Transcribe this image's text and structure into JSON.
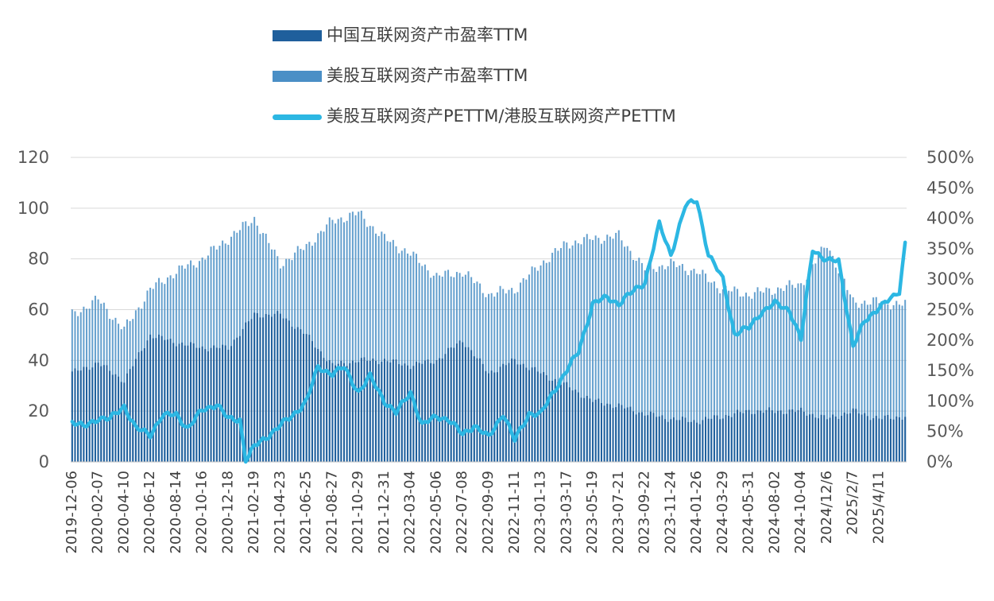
{
  "chart_data": {
    "type": "bar",
    "legend": [
      "中国互联网资产市盈率TTM",
      "美股互联网资产市盈率TTM",
      "美股互联网资产PETTM/港股互联网资产PETTM"
    ],
    "legend_position": "top",
    "grid": true,
    "colors": {
      "china_bar": "#1f5f9c",
      "us_bar": "#4a8fc6",
      "ratio_line": "#2cb7e3"
    },
    "left_axis": {
      "min": 0,
      "max": 120,
      "ticks": [
        "0",
        "20",
        "40",
        "60",
        "80",
        "100",
        "120"
      ]
    },
    "right_axis": {
      "min": 0,
      "max": 5,
      "ticks": [
        "0%",
        "50%",
        "100%",
        "150%",
        "200%",
        "250%",
        "300%",
        "350%",
        "400%",
        "450%",
        "500%"
      ]
    },
    "x_tick_labels": [
      "2019-12-06",
      "2020-02-07",
      "2020-04-10",
      "2020-06-12",
      "2020-08-14",
      "2020-10-16",
      "2020-12-18",
      "2021-02-19",
      "2021-04-23",
      "2021-06-25",
      "2021-08-27",
      "2021-10-29",
      "2021-12-31",
      "2022-03-04",
      "2022-05-06",
      "2022-07-08",
      "2022-09-09",
      "2022-11-11",
      "2023-01-13",
      "2023-03-17",
      "2023-05-19",
      "2023-07-21",
      "2023-09-22",
      "2023-11-24",
      "2024-01-26",
      "2024-03-29",
      "2024-05-31",
      "2024-08-02",
      "2024-10-04",
      "2024/12/6",
      "2025/2/7",
      "2025/4/11"
    ],
    "tick_index_positions": [
      0,
      9,
      18,
      27,
      36,
      45,
      54,
      63,
      72,
      81,
      90,
      99,
      108,
      117,
      126,
      135,
      144,
      153,
      162,
      171,
      180,
      189,
      198,
      207,
      216,
      225,
      234,
      243,
      252,
      261,
      270,
      279
    ],
    "n_points": 289,
    "series": [
      {
        "name": "中国互联网资产市盈率TTM",
        "type": "bar",
        "axis": "left",
        "anchors": [
          [
            0,
            35
          ],
          [
            9,
            39
          ],
          [
            18,
            32
          ],
          [
            27,
            50
          ],
          [
            36,
            47
          ],
          [
            45,
            45
          ],
          [
            54,
            45
          ],
          [
            63,
            58
          ],
          [
            72,
            58
          ],
          [
            81,
            50
          ],
          [
            90,
            38
          ],
          [
            99,
            40
          ],
          [
            108,
            40
          ],
          [
            117,
            38
          ],
          [
            126,
            40
          ],
          [
            135,
            48
          ],
          [
            144,
            35
          ],
          [
            153,
            40
          ],
          [
            162,
            35
          ],
          [
            171,
            30
          ],
          [
            180,
            24
          ],
          [
            189,
            22
          ],
          [
            198,
            19
          ],
          [
            207,
            17
          ],
          [
            216,
            16
          ],
          [
            225,
            18
          ],
          [
            234,
            20
          ],
          [
            243,
            20
          ],
          [
            252,
            20
          ],
          [
            261,
            17
          ],
          [
            270,
            20
          ],
          [
            279,
            17
          ],
          [
            288,
            18
          ]
        ]
      },
      {
        "name": "美股互联网资产市盈率TTM",
        "type": "bar",
        "axis": "left",
        "anchors": [
          [
            0,
            58
          ],
          [
            9,
            64
          ],
          [
            18,
            52
          ],
          [
            27,
            68
          ],
          [
            36,
            75
          ],
          [
            45,
            80
          ],
          [
            54,
            88
          ],
          [
            63,
            96
          ],
          [
            72,
            78
          ],
          [
            81,
            85
          ],
          [
            90,
            95
          ],
          [
            99,
            98
          ],
          [
            108,
            88
          ],
          [
            117,
            82
          ],
          [
            126,
            73
          ],
          [
            135,
            75
          ],
          [
            144,
            66
          ],
          [
            153,
            68
          ],
          [
            162,
            78
          ],
          [
            171,
            86
          ],
          [
            180,
            88
          ],
          [
            189,
            89
          ],
          [
            198,
            76
          ],
          [
            207,
            78
          ],
          [
            216,
            75
          ],
          [
            225,
            68
          ],
          [
            234,
            66
          ],
          [
            243,
            68
          ],
          [
            252,
            70
          ],
          [
            261,
            86
          ],
          [
            270,
            63
          ],
          [
            279,
            63
          ],
          [
            288,
            62
          ]
        ]
      },
      {
        "name": "美股互联网资产PETTM/港股互联网资产PETTM",
        "type": "line",
        "axis": "right",
        "anchors": [
          [
            0,
            0.66
          ],
          [
            4,
            0.57
          ],
          [
            9,
            0.72
          ],
          [
            13,
            0.7
          ],
          [
            18,
            0.92
          ],
          [
            22,
            0.55
          ],
          [
            27,
            0.45
          ],
          [
            31,
            0.75
          ],
          [
            36,
            0.78
          ],
          [
            40,
            0.55
          ],
          [
            45,
            0.85
          ],
          [
            50,
            0.95
          ],
          [
            54,
            0.7
          ],
          [
            58,
            0.7
          ],
          [
            60,
            0.02
          ],
          [
            63,
            0.25
          ],
          [
            67,
            0.4
          ],
          [
            72,
            0.6
          ],
          [
            76,
            0.75
          ],
          [
            81,
            1.0
          ],
          [
            85,
            1.55
          ],
          [
            90,
            1.45
          ],
          [
            94,
            1.55
          ],
          [
            99,
            1.15
          ],
          [
            103,
            1.4
          ],
          [
            108,
            1.0
          ],
          [
            112,
            0.8
          ],
          [
            117,
            1.15
          ],
          [
            121,
            0.6
          ],
          [
            126,
            0.75
          ],
          [
            130,
            0.7
          ],
          [
            135,
            0.45
          ],
          [
            139,
            0.6
          ],
          [
            144,
            0.4
          ],
          [
            149,
            0.8
          ],
          [
            153,
            0.35
          ],
          [
            158,
            0.8
          ],
          [
            162,
            0.78
          ],
          [
            167,
            1.2
          ],
          [
            171,
            1.5
          ],
          [
            175,
            1.8
          ],
          [
            180,
            2.6
          ],
          [
            185,
            2.7
          ],
          [
            189,
            2.6
          ],
          [
            194,
            2.8
          ],
          [
            198,
            2.95
          ],
          [
            203,
            3.9
          ],
          [
            207,
            3.4
          ],
          [
            212,
            4.2
          ],
          [
            216,
            4.3
          ],
          [
            220,
            3.4
          ],
          [
            225,
            3.0
          ],
          [
            229,
            2.1
          ],
          [
            234,
            2.2
          ],
          [
            238,
            2.45
          ],
          [
            243,
            2.6
          ],
          [
            248,
            2.5
          ],
          [
            252,
            2.0
          ],
          [
            256,
            3.5
          ],
          [
            261,
            3.3
          ],
          [
            265,
            3.3
          ],
          [
            270,
            1.9
          ],
          [
            274,
            2.3
          ],
          [
            279,
            2.55
          ],
          [
            284,
            2.7
          ],
          [
            286,
            2.8
          ],
          [
            288,
            3.6
          ]
        ]
      }
    ]
  }
}
